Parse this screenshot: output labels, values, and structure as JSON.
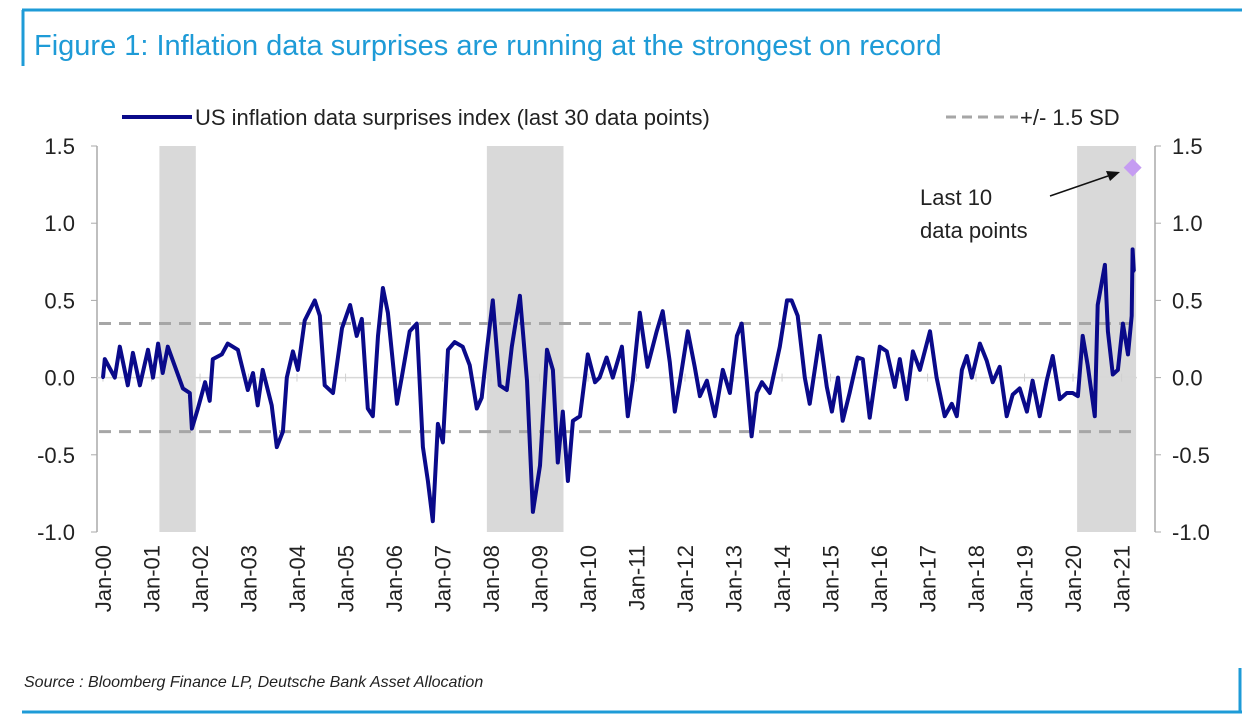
{
  "title": "Figure 1: Inflation data surprises are running at the strongest on record",
  "source": "Source : Bloomberg Finance LP, Deutsche Bank Asset Allocation",
  "colors": {
    "accent": "#1e9bd7",
    "series": "#0a0a8a",
    "band": "#d9d9d9",
    "sd": "#a6a6a6",
    "marker": "#c59cf2"
  },
  "chart_data": {
    "type": "line",
    "title": "",
    "xlabel": "",
    "ylabel": "",
    "ylim": [
      -1.0,
      1.5
    ],
    "xlim": [
      "1999-11-17",
      "2021-04-27"
    ],
    "yticks": [
      "1.5",
      "1.0",
      "0.5",
      "0.0",
      "-0.5",
      "-1.0"
    ],
    "ytick_values": [
      1.5,
      1.0,
      0.5,
      0.0,
      -0.5,
      -1.0
    ],
    "secondary_y_axis": true,
    "xticks": [
      "Jan-00",
      "Jan-01",
      "Jan-02",
      "Jan-03",
      "Jan-04",
      "Jan-05",
      "Jan-06",
      "Jan-07",
      "Jan-08",
      "Jan-09",
      "Jan-10",
      "Jan-11",
      "Jan-12",
      "Jan-13",
      "Jan-14",
      "Jan-15",
      "Jan-16",
      "Jan-17",
      "Jan-18",
      "Jan-19",
      "Jan-20",
      "Jan-21"
    ],
    "grid": false,
    "zero_line": true,
    "legend": {
      "placement": "top",
      "entries": [
        "US inflation data surprises index (last 30 data points)",
        "+/- 1.5 SD"
      ]
    },
    "shaded_periods": [
      [
        "2001-03-01",
        "2001-11-30"
      ],
      [
        "2007-12-01",
        "2009-06-30"
      ],
      [
        "2020-02-01",
        "2021-04-20"
      ]
    ],
    "sd_band": [
      -0.35,
      0.35
    ],
    "annotation": {
      "text_line1": "Last 10",
      "text_line2": "data points",
      "point": {
        "x": "2021-03-25",
        "y": 1.36
      }
    },
    "series": [
      {
        "name": "US inflation data surprises index (last 30 data points)",
        "x": [
          "2000-01-01",
          "2000-01-15",
          "2000-03-30",
          "2000-05-07",
          "2000-07-06",
          "2000-08-13",
          "2000-10-05",
          "2000-12-05",
          "2001-01-12",
          "2001-02-19",
          "2001-03-26",
          "2001-05-03",
          "2001-08-25",
          "2001-10-16",
          "2001-11-01",
          "2001-12-16",
          "2002-02-08",
          "2002-03-15",
          "2002-04-07",
          "2002-06-14",
          "2002-07-28",
          "2002-10-13",
          "2002-12-27",
          "2003-02-04",
          "2003-03-11",
          "2003-04-18",
          "2003-06-25",
          "2003-08-02",
          "2003-09-17",
          "2003-10-16",
          "2003-12-01",
          "2004-01-08",
          "2004-02-28",
          "2004-05-14",
          "2004-06-21",
          "2004-07-28",
          "2004-09-28",
          "2004-12-05",
          "2005-02-04",
          "2005-03-26",
          "2005-05-03",
          "2005-06-17",
          "2005-07-25",
          "2005-09-02",
          "2005-10-09",
          "2005-11-16",
          "2006-01-23",
          "2006-02-28",
          "2006-04-29",
          "2006-06-21",
          "2006-08-06",
          "2006-09-13",
          "2006-10-20",
          "2006-11-27",
          "2007-01-04",
          "2007-02-11",
          "2007-04-03",
          "2007-06-02",
          "2007-07-25",
          "2007-09-16",
          "2007-10-23",
          "2007-12-01",
          "2008-01-15",
          "2008-03-07",
          "2008-04-29",
          "2008-06-06",
          "2008-08-06",
          "2008-09-28",
          "2008-11-12",
          "2009-01-04",
          "2009-02-26",
          "2009-04-11",
          "2009-05-18",
          "2009-06-25",
          "2009-08-02",
          "2009-09-09",
          "2009-11-01",
          "2009-12-30",
          "2010-02-22",
          "2010-03-29",
          "2010-05-21",
          "2010-07-06",
          "2010-09-13",
          "2010-10-27",
          "2010-12-04",
          "2011-01-26",
          "2011-03-25",
          "2011-06-02",
          "2011-07-17",
          "2011-09-09",
          "2011-10-16",
          "2011-11-23",
          "2012-01-22",
          "2012-03-14",
          "2012-04-22",
          "2012-06-14",
          "2012-08-13",
          "2012-10-12",
          "2012-12-04",
          "2013-01-26",
          "2013-03-03",
          "2013-04-10",
          "2013-05-17",
          "2013-06-25",
          "2013-08-02",
          "2013-10-01",
          "2013-12-15",
          "2014-02-07",
          "2014-03-14",
          "2014-04-29",
          "2014-06-21",
          "2014-07-28",
          "2014-10-12",
          "2014-12-04",
          "2015-01-11",
          "2015-02-26",
          "2015-04-03",
          "2015-05-25",
          "2015-07-24",
          "2015-09-01",
          "2015-10-23",
          "2016-01-07",
          "2016-02-29",
          "2016-04-29",
          "2016-06-06",
          "2016-07-28",
          "2016-09-12",
          "2016-11-04",
          "2017-01-19",
          "2017-03-10",
          "2017-05-10",
          "2017-07-02",
          "2017-08-09",
          "2017-09-16",
          "2017-10-23",
          "2017-11-30",
          "2018-01-30",
          "2018-03-22",
          "2018-05-06",
          "2018-06-28",
          "2018-08-20",
          "2018-10-04",
          "2018-11-26",
          "2019-01-19",
          "2019-03-03",
          "2019-04-25",
          "2019-06-17",
          "2019-08-01",
          "2019-09-23",
          "2019-11-15",
          "2019-12-30",
          "2020-02-07",
          "2020-03-14",
          "2020-04-21",
          "2020-06-13",
          "2020-07-05",
          "2020-08-28",
          "2020-09-20",
          "2020-10-27",
          "2020-12-04",
          "2021-01-11",
          "2021-02-18",
          "2021-03-18",
          "2021-03-25",
          "2021-04-03"
        ],
        "y": [
          0.0,
          0.12,
          0.0,
          0.2,
          -0.05,
          0.16,
          -0.05,
          0.18,
          0.0,
          0.22,
          0.03,
          0.2,
          -0.07,
          -0.1,
          -0.33,
          -0.2,
          -0.03,
          -0.15,
          0.12,
          0.15,
          0.22,
          0.18,
          -0.08,
          0.03,
          -0.18,
          0.05,
          -0.18,
          -0.45,
          -0.35,
          0.0,
          0.17,
          0.05,
          0.37,
          0.5,
          0.4,
          -0.05,
          -0.1,
          0.32,
          0.47,
          0.27,
          0.38,
          -0.2,
          -0.25,
          0.27,
          0.58,
          0.42,
          -0.17,
          0.0,
          0.3,
          0.35,
          -0.45,
          -0.67,
          -0.93,
          -0.3,
          -0.42,
          0.18,
          0.23,
          0.2,
          0.08,
          -0.2,
          -0.13,
          0.18,
          0.5,
          -0.05,
          -0.08,
          0.2,
          0.53,
          -0.02,
          -0.87,
          -0.57,
          0.18,
          0.05,
          -0.55,
          -0.22,
          -0.67,
          -0.28,
          -0.25,
          0.15,
          -0.03,
          0.0,
          0.13,
          0.0,
          0.2,
          -0.25,
          -0.02,
          0.42,
          0.07,
          0.3,
          0.43,
          0.1,
          -0.22,
          -0.03,
          0.3,
          0.07,
          -0.12,
          -0.02,
          -0.25,
          0.05,
          -0.1,
          0.27,
          0.35,
          -0.01,
          -0.38,
          -0.1,
          -0.03,
          -0.1,
          0.2,
          0.5,
          0.5,
          0.4,
          0.0,
          -0.17,
          0.27,
          -0.06,
          -0.22,
          0.0,
          -0.28,
          -0.1,
          0.13,
          0.12,
          -0.26,
          0.2,
          0.17,
          -0.06,
          0.12,
          -0.14,
          0.17,
          0.05,
          0.3,
          0.0,
          -0.25,
          -0.17,
          -0.25,
          0.05,
          0.14,
          0.0,
          0.22,
          0.11,
          -0.03,
          0.07,
          -0.25,
          -0.11,
          -0.07,
          -0.22,
          -0.02,
          -0.25,
          -0.02,
          0.14,
          -0.14,
          -0.1,
          -0.1,
          -0.12,
          0.27,
          0.08,
          -0.25,
          0.47,
          0.73,
          0.3,
          0.02,
          0.05,
          0.35,
          0.15,
          0.4,
          0.83,
          0.69
        ]
      }
    ]
  }
}
